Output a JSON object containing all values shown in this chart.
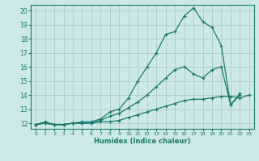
{
  "title": "",
  "xlabel": "Humidex (Indice chaleur)",
  "bg_color": "#cce9e8",
  "grid_color": "#b0d0cf",
  "line_color": "#1a7a6e",
  "xlim": [
    -0.5,
    23.5
  ],
  "ylim": [
    11.6,
    20.4
  ],
  "xticks": [
    0,
    1,
    2,
    3,
    4,
    5,
    6,
    7,
    8,
    9,
    10,
    11,
    12,
    13,
    14,
    15,
    16,
    17,
    18,
    19,
    20,
    21,
    22,
    23
  ],
  "yticks": [
    12,
    13,
    14,
    15,
    16,
    17,
    18,
    19,
    20
  ],
  "line1_x": [
    0,
    1,
    2,
    3,
    4,
    5,
    6,
    7,
    8,
    9,
    10,
    11,
    12,
    13,
    14,
    15,
    16,
    17,
    18,
    19,
    20,
    21,
    22
  ],
  "line1_y": [
    11.9,
    12.1,
    11.9,
    11.9,
    12.0,
    12.1,
    12.1,
    12.3,
    12.8,
    13.0,
    13.8,
    15.0,
    16.0,
    17.0,
    18.3,
    18.5,
    19.6,
    20.2,
    19.2,
    18.8,
    17.5,
    13.3,
    14.0
  ],
  "line2_x": [
    0,
    1,
    2,
    3,
    4,
    5,
    6,
    7,
    8,
    9,
    10,
    11,
    12,
    13,
    14,
    15,
    16,
    17,
    18,
    19,
    20,
    21,
    22
  ],
  "line2_y": [
    11.9,
    12.0,
    11.9,
    11.9,
    12.0,
    12.0,
    12.0,
    12.2,
    12.5,
    12.7,
    13.1,
    13.5,
    14.0,
    14.6,
    15.2,
    15.8,
    16.0,
    15.5,
    15.2,
    15.8,
    16.0,
    13.3,
    14.1
  ],
  "line3_x": [
    0,
    1,
    2,
    3,
    4,
    5,
    6,
    7,
    8,
    9,
    10,
    11,
    12,
    13,
    14,
    15,
    16,
    17,
    18,
    19,
    20,
    21,
    22,
    23
  ],
  "line3_y": [
    11.9,
    12.0,
    11.9,
    11.9,
    12.0,
    12.0,
    12.0,
    12.1,
    12.1,
    12.2,
    12.4,
    12.6,
    12.8,
    13.0,
    13.2,
    13.4,
    13.6,
    13.7,
    13.7,
    13.8,
    13.9,
    13.9,
    13.8,
    14.0
  ]
}
